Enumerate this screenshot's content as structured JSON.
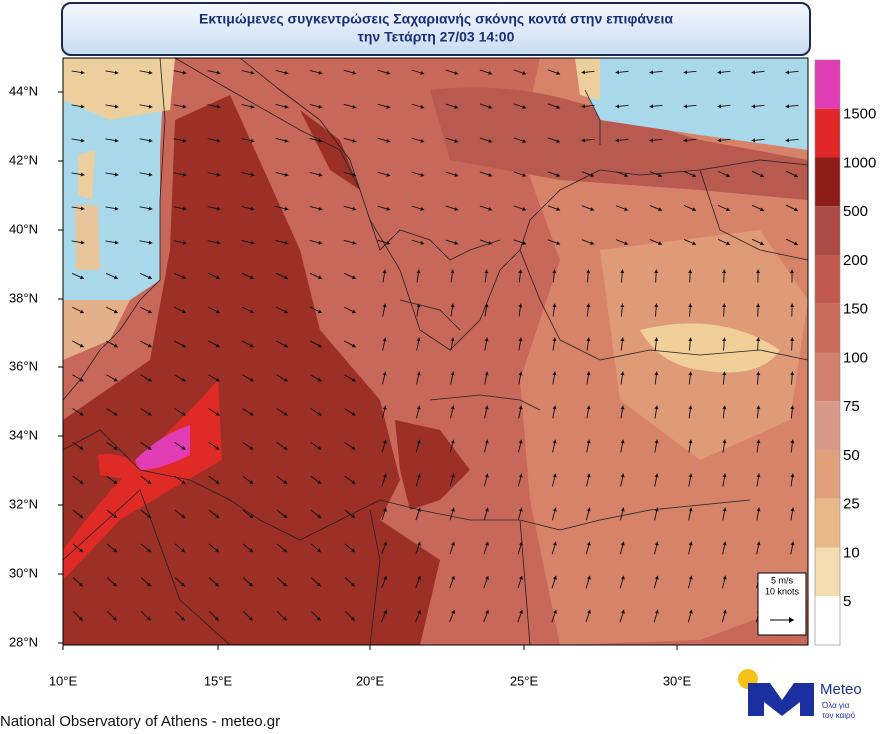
{
  "title": {
    "line1": "Εκτιμώμενες συγκεντρώσεις Σαχαριανής σκόνης κοντά στην επιφάνεια",
    "line2": "την Τετάρτη 27/03 14:00"
  },
  "lat_labels": [
    "44°N",
    "42°N",
    "40°N",
    "38°N",
    "36°N",
    "34°N",
    "32°N",
    "30°N",
    "28°N"
  ],
  "lon_labels": [
    "10°E",
    "15°E",
    "20°E",
    "25°E",
    "30°E"
  ],
  "colorbar": {
    "labels": [
      "1500",
      "1000",
      "500",
      "200",
      "150",
      "100",
      "75",
      "50",
      "25",
      "10",
      "5"
    ]
  },
  "wind_key": {
    "speed": "5 m/s",
    "knots": "10 knots"
  },
  "footer": "National Observatory of Athens - meteo.gr",
  "logo": {
    "name": "Meteo",
    "tagline1": "Όλα για",
    "tagline2": "τον καιρό"
  }
}
